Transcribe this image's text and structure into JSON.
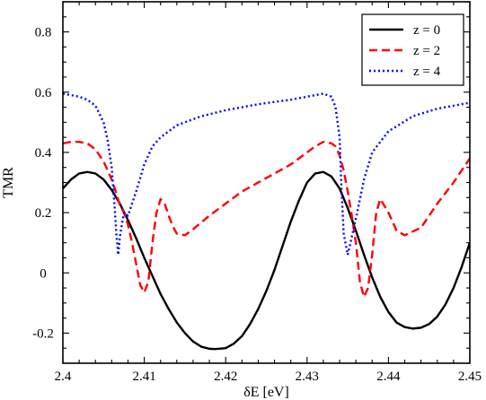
{
  "chart_data": {
    "type": "line",
    "title": "",
    "xlabel": "δE [eV]",
    "ylabel": "TMR",
    "xlim": [
      2.4,
      2.45
    ],
    "ylim": [
      -0.3,
      0.9
    ],
    "x_ticks": [
      2.4,
      2.41,
      2.42,
      2.43,
      2.44,
      2.45
    ],
    "x_tick_labels": [
      "2.4",
      "2.41",
      "2.42",
      "2.43",
      "2.44",
      "2.45"
    ],
    "y_ticks": [
      -0.2,
      0,
      0.2,
      0.4,
      0.6,
      0.8
    ],
    "y_tick_labels": [
      "-0.2",
      "0",
      "0.2",
      "0.4",
      "0.6",
      "0.8"
    ],
    "grid": false,
    "legend_position": "top-right",
    "series": [
      {
        "name": "z = 0",
        "color": "#000000",
        "dash": "solid",
        "x": [
          2.4,
          2.401,
          2.402,
          2.403,
          2.404,
          2.405,
          2.406,
          2.407,
          2.408,
          2.409,
          2.41,
          2.411,
          2.412,
          2.413,
          2.414,
          2.415,
          2.416,
          2.417,
          2.418,
          2.4187,
          2.42,
          2.421,
          2.422,
          2.423,
          2.424,
          2.425,
          2.426,
          2.427,
          2.428,
          2.429,
          2.43,
          2.431,
          2.432,
          2.433,
          2.434,
          2.435,
          2.436,
          2.437,
          2.438,
          2.439,
          2.44,
          2.441,
          2.442,
          2.443,
          2.444,
          2.445,
          2.446,
          2.447,
          2.448,
          2.449,
          2.45
        ],
        "y": [
          0.28,
          0.31,
          0.33,
          0.335,
          0.33,
          0.31,
          0.275,
          0.23,
          0.175,
          0.115,
          0.05,
          -0.01,
          -0.07,
          -0.12,
          -0.165,
          -0.2,
          -0.228,
          -0.245,
          -0.252,
          -0.253,
          -0.25,
          -0.235,
          -0.21,
          -0.17,
          -0.12,
          -0.06,
          0.01,
          0.09,
          0.17,
          0.24,
          0.3,
          0.33,
          0.335,
          0.32,
          0.28,
          0.215,
          0.14,
          0.06,
          -0.015,
          -0.08,
          -0.13,
          -0.165,
          -0.18,
          -0.185,
          -0.182,
          -0.17,
          -0.145,
          -0.105,
          -0.05,
          0.02,
          0.1
        ]
      },
      {
        "name": "z = 2",
        "color": "#ff0000",
        "dash": "dashed",
        "x": [
          2.4,
          2.401,
          2.402,
          2.403,
          2.404,
          2.405,
          2.406,
          2.4065,
          2.407,
          2.4075,
          2.408,
          2.4085,
          2.409,
          2.4095,
          2.41,
          2.4105,
          2.411,
          2.4115,
          2.412,
          2.4125,
          2.413,
          2.4135,
          2.414,
          2.415,
          2.416,
          2.418,
          2.42,
          2.422,
          2.424,
          2.426,
          2.428,
          2.43,
          2.431,
          2.432,
          2.433,
          2.4335,
          2.434,
          2.4345,
          2.435,
          2.4355,
          2.436,
          2.4365,
          2.437,
          2.4375,
          2.438,
          2.4385,
          2.439,
          2.44,
          2.441,
          2.442,
          2.444,
          2.446,
          2.448,
          2.45
        ],
        "y": [
          0.43,
          0.435,
          0.435,
          0.43,
          0.41,
          0.37,
          0.31,
          0.27,
          0.225,
          0.2,
          0.16,
          0.1,
          0.03,
          -0.04,
          -0.065,
          -0.03,
          0.1,
          0.2,
          0.245,
          0.23,
          0.19,
          0.155,
          0.13,
          0.125,
          0.145,
          0.19,
          0.23,
          0.27,
          0.3,
          0.33,
          0.36,
          0.4,
          0.42,
          0.435,
          0.43,
          0.42,
          0.39,
          0.34,
          0.27,
          0.19,
          0.1,
          -0.03,
          -0.08,
          -0.05,
          0.06,
          0.2,
          0.245,
          0.2,
          0.14,
          0.125,
          0.15,
          0.23,
          0.3,
          0.38
        ]
      },
      {
        "name": "z = 4",
        "color": "#0000ff",
        "dash": "dotted",
        "x": [
          2.4,
          2.401,
          2.402,
          2.403,
          2.404,
          2.405,
          2.4055,
          2.406,
          2.4063,
          2.4066,
          2.4068,
          2.407,
          2.4075,
          2.408,
          2.409,
          2.41,
          2.411,
          2.412,
          2.414,
          2.417,
          2.42,
          2.424,
          2.428,
          2.431,
          2.432,
          2.433,
          2.4335,
          2.434,
          2.4342,
          2.4345,
          2.435,
          2.436,
          2.437,
          2.438,
          2.44,
          2.443,
          2.446,
          2.45
        ],
        "y": [
          0.595,
          0.59,
          0.585,
          0.575,
          0.555,
          0.5,
          0.44,
          0.35,
          0.24,
          0.12,
          0.06,
          0.12,
          0.2,
          0.19,
          0.27,
          0.36,
          0.42,
          0.45,
          0.49,
          0.52,
          0.54,
          0.56,
          0.575,
          0.59,
          0.595,
          0.585,
          0.55,
          0.45,
          0.3,
          0.13,
          0.06,
          0.18,
          0.31,
          0.4,
          0.47,
          0.52,
          0.545,
          0.565
        ]
      }
    ]
  }
}
